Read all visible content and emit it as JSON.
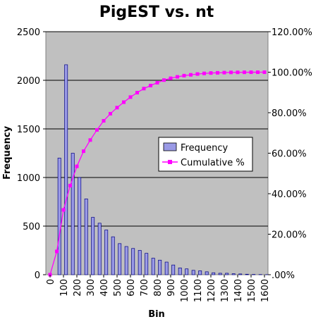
{
  "chart_data": {
    "type": "bar",
    "title": "PigEST vs. nt",
    "xlabel": "Bin",
    "ylabel": "Frequency",
    "ylim": [
      0,
      2500
    ],
    "y2lim": [
      0,
      1.2
    ],
    "y_ticks": [
      "0",
      "500",
      "1000",
      "1500",
      "2000",
      "2500"
    ],
    "y2_ticks": [
      ".00%",
      "20.00%",
      "40.00%",
      "60.00%",
      "80.00%",
      "100.00%",
      "120.00%"
    ],
    "categories": [
      "0",
      "50",
      "100",
      "150",
      "200",
      "250",
      "300",
      "350",
      "400",
      "450",
      "500",
      "550",
      "600",
      "650",
      "700",
      "750",
      "800",
      "850",
      "900",
      "950",
      "1000",
      "1050",
      "1100",
      "1150",
      "1200",
      "1250",
      "1300",
      "1350",
      "1400",
      "1450",
      "1500",
      "1550",
      "1600"
    ],
    "x_tick_labels": [
      "0",
      "100",
      "200",
      "300",
      "400",
      "500",
      "600",
      "700",
      "800",
      "900",
      "1000",
      "1100",
      "1200",
      "1300",
      "1400",
      "1500",
      "1600"
    ],
    "series": [
      {
        "name": "Frequency",
        "type": "bar",
        "color": "#9a9ae6",
        "values": [
          0,
          1200,
          2160,
          1250,
          1000,
          780,
          590,
          530,
          460,
          390,
          320,
          290,
          270,
          250,
          220,
          170,
          150,
          130,
          100,
          70,
          60,
          45,
          40,
          30,
          20,
          15,
          15,
          10,
          8,
          5,
          3,
          2,
          1
        ]
      },
      {
        "name": "Cumulative %",
        "type": "line",
        "color": "#ff00ff",
        "values": [
          0,
          0.115,
          0.32,
          0.44,
          0.535,
          0.61,
          0.665,
          0.715,
          0.76,
          0.795,
          0.825,
          0.852,
          0.877,
          0.899,
          0.919,
          0.934,
          0.948,
          0.961,
          0.97,
          0.977,
          0.983,
          0.987,
          0.991,
          0.994,
          0.996,
          0.997,
          0.998,
          0.999,
          0.9993,
          0.9996,
          0.9998,
          0.9999,
          1.0
        ]
      }
    ],
    "grid": true,
    "plot_background": "#c0c0c0",
    "legend_position": "right-middle"
  }
}
